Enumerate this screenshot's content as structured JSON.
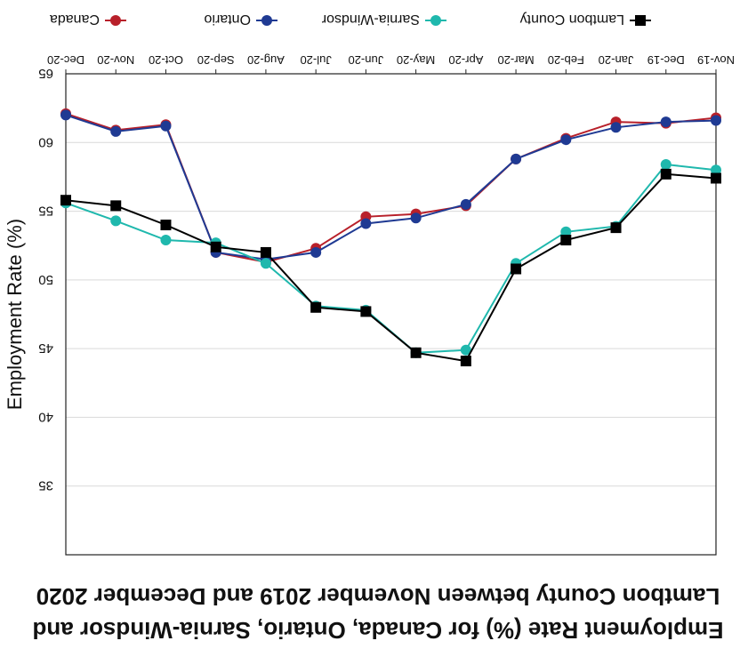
{
  "chart_data": {
    "type": "line",
    "title_lines": [
      "Employment Rate (%) for Canada, Ontario, Sarnia-Windsor and",
      "Lamtbon County between November 2019 and December 2020"
    ],
    "xlabel": "",
    "ylabel": "Employment Rate (%)",
    "categories": [
      "Nov-19",
      "Dec-19",
      "Jan-20",
      "Feb-20",
      "Mar-20",
      "Apr-20",
      "May-20",
      "Jun-20",
      "Jul-20",
      "Aug-20",
      "Sep-20",
      "Oct-20",
      "Nov-20",
      "Dec-20"
    ],
    "yticks": [
      35,
      40,
      45,
      50,
      55,
      60,
      65
    ],
    "ylim": [
      30,
      65
    ],
    "y_inverted": true,
    "grid": true,
    "legend_position": "top",
    "series": [
      {
        "name": "Canada",
        "color": "#b8202a",
        "marker": "circle",
        "values": [
          61.8,
          61.4,
          61.5,
          60.3,
          58.8,
          55.4,
          54.8,
          54.6,
          52.3,
          51.3,
          52.0,
          61.3,
          60.9,
          62.1
        ]
      },
      {
        "name": "Ontario",
        "color": "#1f3a93",
        "marker": "circle",
        "values": [
          61.6,
          61.5,
          61.1,
          60.2,
          58.8,
          55.5,
          54.5,
          54.1,
          52.0,
          51.5,
          52.0,
          61.2,
          60.8,
          62.0
        ]
      },
      {
        "name": "Sarnia-Windsor",
        "color": "#1fb8ad",
        "marker": "circle",
        "values": [
          58.0,
          58.4,
          53.9,
          53.5,
          51.2,
          44.9,
          44.7,
          47.8,
          48.1,
          51.2,
          52.7,
          52.9,
          54.3,
          55.6
        ]
      },
      {
        "name": "Lamtbon County",
        "color": "#000000",
        "marker": "square",
        "values": [
          57.4,
          57.7,
          53.8,
          52.9,
          50.8,
          44.1,
          44.7,
          47.7,
          48.0,
          52.0,
          52.4,
          54.0,
          55.4,
          55.8
        ]
      }
    ]
  }
}
